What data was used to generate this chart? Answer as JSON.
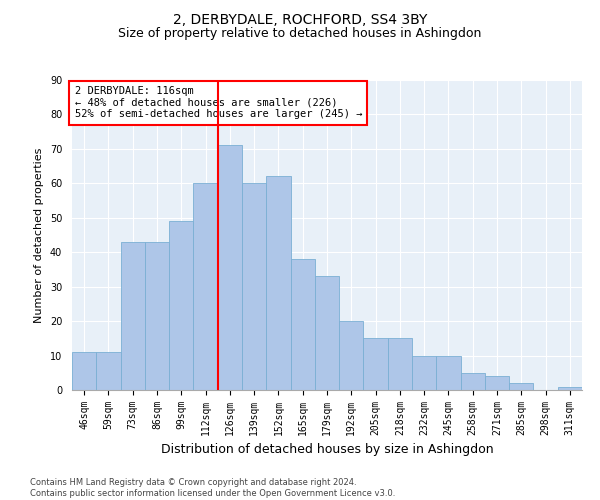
{
  "title": "2, DERBYDALE, ROCHFORD, SS4 3BY",
  "subtitle": "Size of property relative to detached houses in Ashingdon",
  "xlabel": "Distribution of detached houses by size in Ashingdon",
  "ylabel": "Number of detached properties",
  "bar_labels": [
    "46sqm",
    "59sqm",
    "73sqm",
    "86sqm",
    "99sqm",
    "112sqm",
    "126sqm",
    "139sqm",
    "152sqm",
    "165sqm",
    "179sqm",
    "192sqm",
    "205sqm",
    "218sqm",
    "232sqm",
    "245sqm",
    "258sqm",
    "271sqm",
    "285sqm",
    "298sqm",
    "311sqm"
  ],
  "bar_values": [
    11,
    11,
    43,
    43,
    49,
    60,
    71,
    60,
    62,
    38,
    33,
    20,
    15,
    15,
    10,
    10,
    5,
    4,
    2,
    0,
    1
  ],
  "bar_color": "#aec6e8",
  "bar_edge_color": "#7aafd4",
  "vline_x": 6.0,
  "vline_color": "red",
  "annotation_text": "2 DERBYDALE: 116sqm\n← 48% of detached houses are smaller (226)\n52% of semi-detached houses are larger (245) →",
  "annotation_box_color": "white",
  "annotation_box_edge_color": "red",
  "ylim": [
    0,
    90
  ],
  "yticks": [
    0,
    10,
    20,
    30,
    40,
    50,
    60,
    70,
    80,
    90
  ],
  "bg_color": "#e8f0f8",
  "footer": "Contains HM Land Registry data © Crown copyright and database right 2024.\nContains public sector information licensed under the Open Government Licence v3.0.",
  "title_fontsize": 10,
  "subtitle_fontsize": 9,
  "tick_fontsize": 7,
  "ylabel_fontsize": 8,
  "xlabel_fontsize": 9,
  "annot_fontsize": 7.5
}
